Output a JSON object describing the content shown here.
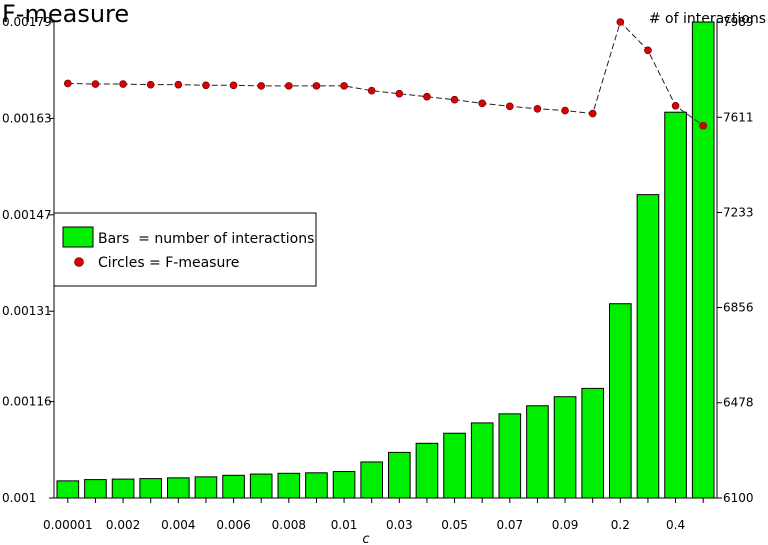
{
  "chart_data": {
    "type": "bar",
    "title": "F-measure",
    "right_axis_title": "# of interactions",
    "xlabel": "c",
    "categories": [
      "0.00001",
      "",
      "0.002",
      "",
      "0.004",
      "",
      "0.006",
      "",
      "0.008",
      "",
      "0.01",
      "",
      "0.03",
      "",
      "0.05",
      "",
      "0.07",
      "",
      "0.09",
      "",
      "0.2",
      "",
      "0.4",
      ""
    ],
    "x_tick_labels": [
      "0.00001",
      "0.002",
      "0.004",
      "0.006",
      "0.008",
      "0.01",
      "0.03",
      "0.05",
      "0.07",
      "0.09",
      "0.2",
      "0.4"
    ],
    "left_axis": {
      "label": "F-measure",
      "ylim": [
        0.001,
        0.00179
      ],
      "tick_labels": [
        "0.001",
        "0.00116",
        "0.00131",
        "0.00147",
        "0.00163",
        "0.00179"
      ],
      "tick_values": [
        0.001,
        0.00116,
        0.00131,
        0.00147,
        0.00163,
        0.00179
      ]
    },
    "right_axis": {
      "label": "# of interactions",
      "ylim": [
        6100,
        7989
      ],
      "tick_labels": [
        "6100",
        "6478",
        "6856",
        "7233",
        "7611",
        "7989"
      ],
      "tick_values": [
        6100,
        6478,
        6856,
        7233,
        7611,
        7989
      ]
    },
    "series": [
      {
        "name": "number of interactions",
        "kind": "bar",
        "axis": "right",
        "color": "#00ee00",
        "values": [
          6168,
          6173,
          6175,
          6177,
          6180,
          6184,
          6190,
          6195,
          6198,
          6200,
          6205,
          6243,
          6281,
          6317,
          6357,
          6398,
          6434,
          6466,
          6502,
          6535,
          6871,
          7304,
          7631,
          7989
        ]
      },
      {
        "name": "F-measure",
        "kind": "circle",
        "axis": "left",
        "color": "#dd0000",
        "values": [
          0.001688,
          0.001687,
          0.001687,
          0.001686,
          0.001686,
          0.001685,
          0.001685,
          0.001684,
          0.001684,
          0.001684,
          0.001684,
          0.001676,
          0.001671,
          0.001666,
          0.001661,
          0.001655,
          0.00165,
          0.001646,
          0.001643,
          0.001638,
          0.00179,
          0.001743,
          0.001651,
          0.001618
        ]
      }
    ],
    "legend": {
      "placement": "left-middle",
      "bars_text": "Bars  = number of interactions",
      "circles_text": "Circles = F-measure"
    }
  }
}
